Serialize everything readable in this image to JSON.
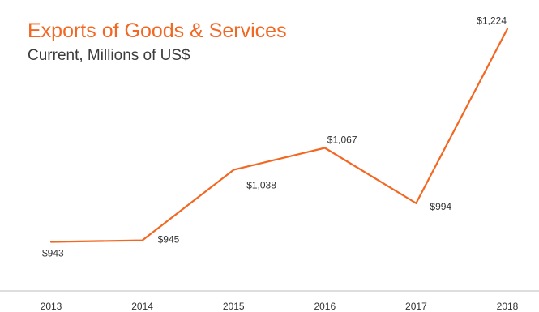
{
  "chart_data": {
    "type": "line",
    "title": "Exports of Goods & Services",
    "subtitle": "Current, Millions of US$",
    "xlabel": "",
    "ylabel": "",
    "grid": false,
    "legend": "none",
    "categories": [
      "2013",
      "2014",
      "2015",
      "2016",
      "2017",
      "2018"
    ],
    "series": [
      {
        "values": [
          943,
          945,
          1038,
          1067,
          994,
          1224
        ],
        "labels": [
          "$943",
          "$945",
          "$1,038",
          "$1,067",
          "$994",
          "$1,224"
        ]
      }
    ],
    "ylim": [
      920,
      1230
    ]
  },
  "colors": {
    "line": "#f26722",
    "title": "#f26722",
    "subtitle": "#3c3c3c",
    "label": "#333333",
    "axis": "#bdbdbd"
  }
}
